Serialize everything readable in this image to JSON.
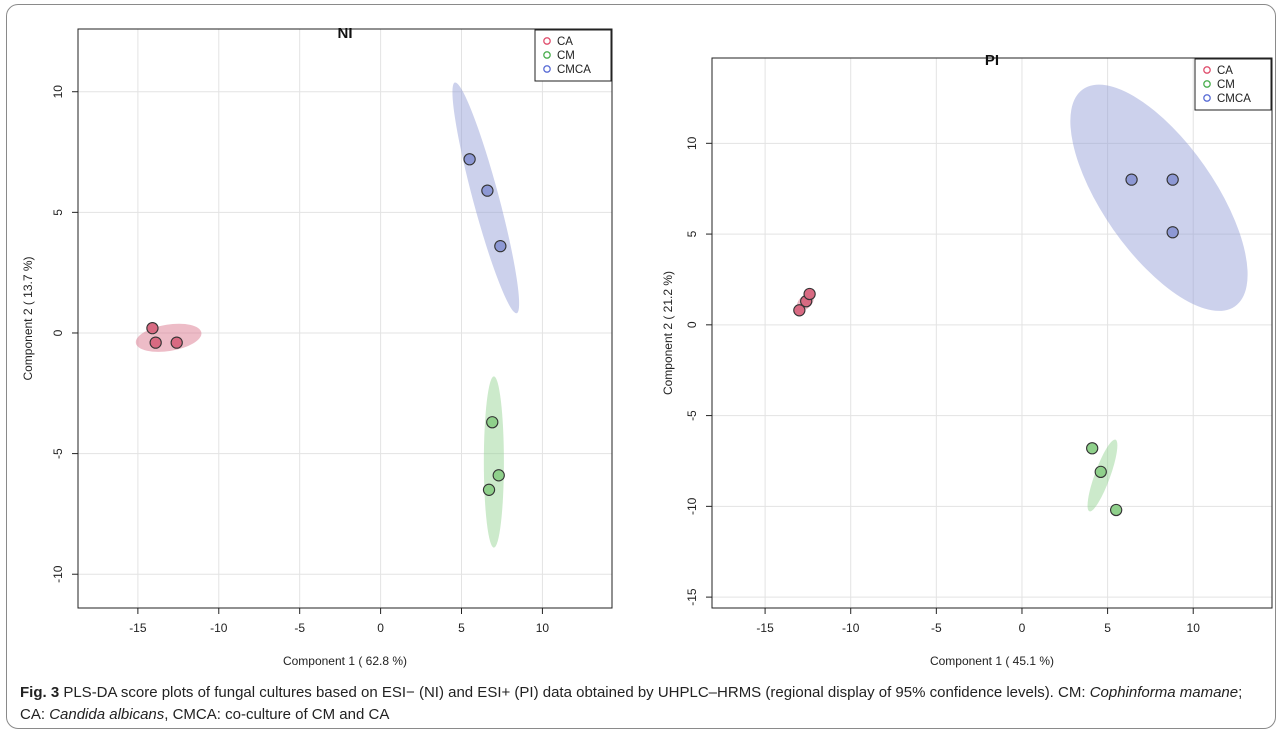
{
  "chart_data": [
    {
      "type": "scatter",
      "title": "NI",
      "xlabel": "Component 1 ( 62.8 %)",
      "ylabel": "Component 2 ( 13.7 %)",
      "xlim": [
        -18.7,
        14.3
      ],
      "ylim": [
        -11.4,
        12.6
      ],
      "xticks": [
        -15,
        -10,
        -5,
        0,
        5,
        10
      ],
      "yticks": [
        -10,
        -5,
        0,
        5,
        10
      ],
      "grid": true,
      "legend_position": "top-right",
      "series": [
        {
          "name": "CA",
          "color": "#e0506e",
          "fill": "#d86a82",
          "points": [
            [
              -14.1,
              0.2
            ],
            [
              -13.9,
              -0.4
            ],
            [
              -12.6,
              -0.4
            ]
          ],
          "ellipse": {
            "center": [
              -13.1,
              -0.2
            ],
            "rx": 2.05,
            "ry": 0.55,
            "angle": -9
          }
        },
        {
          "name": "CM",
          "color": "#4caf50",
          "fill": "#8fd08b",
          "points": [
            [
              6.9,
              -3.7
            ],
            [
              7.3,
              -5.9
            ],
            [
              6.7,
              -6.5
            ]
          ],
          "ellipse": {
            "center": [
              7.0,
              -5.35
            ],
            "rx": 0.62,
            "ry": 3.55,
            "angle": 0
          }
        },
        {
          "name": "CMCA",
          "color": "#5b6ed6",
          "fill": "#8d98d4",
          "points": [
            [
              5.5,
              7.2
            ],
            [
              6.6,
              5.9
            ],
            [
              7.4,
              3.6
            ]
          ],
          "ellipse": {
            "center": [
              6.5,
              5.6
            ],
            "rx": 0.8,
            "ry": 4.95,
            "angle": -15
          }
        }
      ]
    },
    {
      "type": "scatter",
      "title": "PI",
      "xlabel": "Component 1 ( 45.1 %)",
      "ylabel": "Component 2 ( 21.2 %)",
      "xlim": [
        -18.1,
        14.6
      ],
      "ylim": [
        -15.6,
        14.7
      ],
      "xticks": [
        -15,
        -10,
        -5,
        0,
        5,
        10
      ],
      "yticks": [
        -15,
        -10,
        -5,
        0,
        5,
        10
      ],
      "grid": true,
      "legend_position": "top-right",
      "series": [
        {
          "name": "CA",
          "color": "#e0506e",
          "fill": "#d86a82",
          "points": [
            [
              -13.0,
              0.8
            ],
            [
              -12.6,
              1.3
            ],
            [
              -12.4,
              1.7
            ]
          ],
          "ellipse": {
            "center": [
              -12.65,
              1.25
            ],
            "rx": 0.6,
            "ry": 0.35,
            "angle": -45
          }
        },
        {
          "name": "CM",
          "color": "#4caf50",
          "fill": "#8fd08b",
          "points": [
            [
              4.1,
              -6.8
            ],
            [
              4.6,
              -8.1
            ],
            [
              5.5,
              -10.2
            ]
          ],
          "ellipse": {
            "center": [
              4.7,
              -8.3
            ],
            "rx": 0.45,
            "ry": 2.1,
            "angle": 20
          }
        },
        {
          "name": "CMCA",
          "color": "#5b6ed6",
          "fill": "#8d98d4",
          "points": [
            [
              6.4,
              8.0
            ],
            [
              8.8,
              8.0
            ],
            [
              8.8,
              5.1
            ]
          ],
          "ellipse": {
            "center": [
              8.0,
              7.0
            ],
            "rx": 3.25,
            "ry": 7.3,
            "angle": -35
          }
        }
      ]
    }
  ],
  "caption": {
    "label": "Fig. 3",
    "text_1": "  PLS-DA score plots of fungal cultures based on ESI− (NI) and ESI+ (PI) data obtained by UHPLC–HRMS (regional display of 95% confidence levels). CM: ",
    "species_cm": "Cophinforma mamane",
    "text_2": "; CA: ",
    "species_ca": "Candida albicans",
    "text_3": ", CMCA: co-culture of CM and CA"
  }
}
